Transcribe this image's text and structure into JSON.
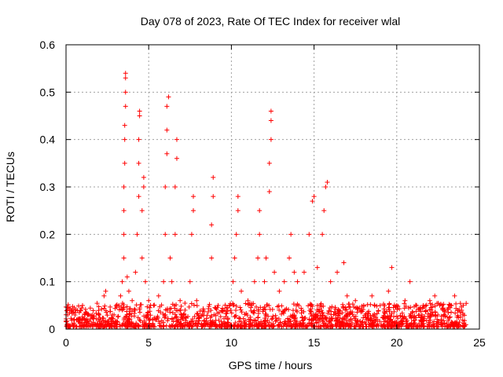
{
  "chart_data": {
    "type": "scatter",
    "title": "Day 078 of 2023, Rate Of TEC Index for receiver wlal",
    "xlabel": "GPS time / hours",
    "ylabel": "ROTI / TECUs",
    "xlim": [
      0,
      25
    ],
    "ylim": [
      0,
      0.6
    ],
    "xticks": [
      0,
      5,
      10,
      15,
      20,
      25
    ],
    "xtick_labels": [
      "0",
      "5",
      "10",
      "15",
      "20",
      "25"
    ],
    "yticks": [
      0,
      0.1,
      0.2,
      0.3,
      0.4,
      0.5,
      0.6
    ],
    "ytick_labels": [
      "0",
      "0.1",
      "0.2",
      "0.3",
      "0.4",
      "0.5",
      "0.6"
    ],
    "grid": true,
    "marker": "+",
    "color": "#ff0000",
    "series": [
      {
        "points": [
          [
            0.1,
            0.03
          ],
          [
            0.3,
            0.04
          ],
          [
            0.5,
            0.02
          ],
          [
            0.8,
            0.035
          ],
          [
            1.0,
            0.05
          ],
          [
            1.3,
            0.03
          ],
          [
            1.6,
            0.025
          ],
          [
            2.0,
            0.03
          ],
          [
            2.3,
            0.07
          ],
          [
            2.4,
            0.08
          ],
          [
            2.8,
            0.03
          ],
          [
            3.2,
            0.05
          ],
          [
            3.3,
            0.07
          ],
          [
            3.4,
            0.1
          ],
          [
            3.5,
            0.15
          ],
          [
            3.5,
            0.2
          ],
          [
            3.5,
            0.25
          ],
          [
            3.5,
            0.3
          ],
          [
            3.55,
            0.35
          ],
          [
            3.55,
            0.4
          ],
          [
            3.55,
            0.43
          ],
          [
            3.6,
            0.47
          ],
          [
            3.6,
            0.5
          ],
          [
            3.6,
            0.53
          ],
          [
            3.6,
            0.54
          ],
          [
            3.7,
            0.11
          ],
          [
            3.8,
            0.08
          ],
          [
            4.0,
            0.06
          ],
          [
            4.2,
            0.12
          ],
          [
            4.3,
            0.2
          ],
          [
            4.4,
            0.28
          ],
          [
            4.4,
            0.35
          ],
          [
            4.4,
            0.4
          ],
          [
            4.45,
            0.45
          ],
          [
            4.45,
            0.46
          ],
          [
            4.6,
            0.15
          ],
          [
            4.6,
            0.25
          ],
          [
            4.7,
            0.3
          ],
          [
            4.7,
            0.32
          ],
          [
            4.8,
            0.1
          ],
          [
            5.0,
            0.06
          ],
          [
            5.3,
            0.05
          ],
          [
            5.6,
            0.07
          ],
          [
            5.9,
            0.1
          ],
          [
            6.0,
            0.2
          ],
          [
            6.0,
            0.3
          ],
          [
            6.1,
            0.37
          ],
          [
            6.1,
            0.42
          ],
          [
            6.1,
            0.47
          ],
          [
            6.2,
            0.49
          ],
          [
            6.3,
            0.15
          ],
          [
            6.4,
            0.1
          ],
          [
            6.6,
            0.2
          ],
          [
            6.6,
            0.3
          ],
          [
            6.7,
            0.36
          ],
          [
            6.7,
            0.4
          ],
          [
            6.9,
            0.06
          ],
          [
            7.2,
            0.04
          ],
          [
            7.5,
            0.1
          ],
          [
            7.6,
            0.2
          ],
          [
            7.7,
            0.25
          ],
          [
            7.7,
            0.28
          ],
          [
            7.9,
            0.06
          ],
          [
            8.3,
            0.04
          ],
          [
            8.8,
            0.15
          ],
          [
            8.8,
            0.22
          ],
          [
            8.9,
            0.28
          ],
          [
            8.9,
            0.32
          ],
          [
            9.2,
            0.05
          ],
          [
            9.6,
            0.04
          ],
          [
            9.9,
            0.05
          ],
          [
            10.1,
            0.1
          ],
          [
            10.2,
            0.15
          ],
          [
            10.3,
            0.2
          ],
          [
            10.4,
            0.25
          ],
          [
            10.4,
            0.28
          ],
          [
            10.6,
            0.08
          ],
          [
            11.0,
            0.06
          ],
          [
            11.4,
            0.1
          ],
          [
            11.6,
            0.15
          ],
          [
            11.7,
            0.2
          ],
          [
            11.7,
            0.25
          ],
          [
            12.0,
            0.1
          ],
          [
            12.1,
            0.15
          ],
          [
            12.3,
            0.29
          ],
          [
            12.3,
            0.35
          ],
          [
            12.4,
            0.4
          ],
          [
            12.4,
            0.44
          ],
          [
            12.4,
            0.46
          ],
          [
            12.6,
            0.12
          ],
          [
            12.9,
            0.08
          ],
          [
            13.2,
            0.1
          ],
          [
            13.5,
            0.15
          ],
          [
            13.6,
            0.2
          ],
          [
            13.8,
            0.12
          ],
          [
            14.0,
            0.1
          ],
          [
            14.4,
            0.12
          ],
          [
            14.7,
            0.2
          ],
          [
            14.9,
            0.27
          ],
          [
            15.0,
            0.28
          ],
          [
            15.2,
            0.13
          ],
          [
            15.5,
            0.2
          ],
          [
            15.6,
            0.25
          ],
          [
            15.7,
            0.3
          ],
          [
            15.8,
            0.31
          ],
          [
            16.0,
            0.1
          ],
          [
            16.4,
            0.12
          ],
          [
            16.8,
            0.14
          ],
          [
            17.0,
            0.07
          ],
          [
            17.5,
            0.06
          ],
          [
            18.0,
            0.05
          ],
          [
            18.5,
            0.07
          ],
          [
            19.0,
            0.05
          ],
          [
            19.5,
            0.08
          ],
          [
            19.7,
            0.13
          ],
          [
            20.0,
            0.05
          ],
          [
            20.5,
            0.06
          ],
          [
            20.8,
            0.1
          ],
          [
            21.2,
            0.05
          ],
          [
            21.6,
            0.05
          ],
          [
            22.0,
            0.06
          ],
          [
            22.3,
            0.07
          ],
          [
            22.8,
            0.04
          ],
          [
            23.2,
            0.05
          ],
          [
            23.5,
            0.07
          ],
          [
            23.8,
            0.04
          ],
          [
            24.0,
            0.03
          ]
        ]
      }
    ]
  }
}
